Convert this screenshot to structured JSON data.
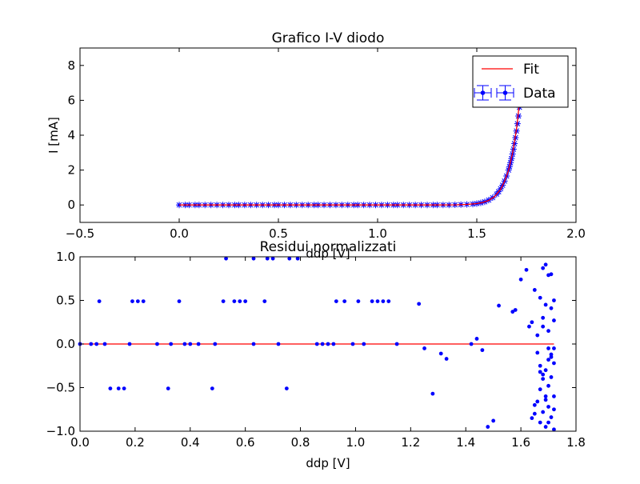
{
  "chart_data": [
    {
      "type": "scatter",
      "title": "Grafico I-V diodo",
      "xlabel": "ddp [V]",
      "ylabel": "I [mA]",
      "xlim": [
        -0.5,
        2.0
      ],
      "ylim": [
        -1,
        9
      ],
      "xticks": [
        "−0.5",
        "0.0",
        "0.5",
        "1.0",
        "1.5",
        "2.0"
      ],
      "yticks": [
        "0",
        "2",
        "4",
        "6",
        "8"
      ],
      "legend": {
        "position": "top-right",
        "entries": [
          "Fit",
          "Data"
        ]
      },
      "colors": {
        "fit": "#ff0000",
        "data": "#0000ff"
      },
      "series": [
        {
          "name": "Data",
          "kind": "errorbar-points",
          "x": [
            0.0,
            0.03,
            0.05,
            0.08,
            0.1,
            0.13,
            0.16,
            0.19,
            0.22,
            0.25,
            0.28,
            0.3,
            0.33,
            0.36,
            0.39,
            0.42,
            0.45,
            0.48,
            0.5,
            0.53,
            0.56,
            0.59,
            0.62,
            0.65,
            0.68,
            0.7,
            0.73,
            0.76,
            0.79,
            0.82,
            0.85,
            0.88,
            0.9,
            0.93,
            0.96,
            0.99,
            1.02,
            1.05,
            1.08,
            1.1,
            1.13,
            1.16,
            1.19,
            1.22,
            1.25,
            1.28,
            1.3,
            1.33,
            1.36,
            1.39,
            1.42,
            1.45,
            1.48,
            1.5,
            1.52,
            1.54,
            1.56,
            1.58,
            1.6,
            1.61,
            1.62,
            1.63,
            1.64,
            1.65,
            1.66,
            1.665,
            1.67,
            1.675,
            1.68,
            1.685,
            1.69,
            1.695,
            1.7,
            1.705,
            1.71,
            1.715,
            1.72
          ],
          "y": [
            0.0,
            0.0,
            0.0,
            0.0,
            0.0,
            0.0,
            0.0,
            0.0,
            0.0,
            0.0,
            0.0,
            0.0,
            0.0,
            0.0,
            0.0,
            0.0,
            0.0,
            0.0,
            0.0,
            0.0,
            0.0,
            0.0,
            0.0,
            0.0,
            0.0,
            0.0,
            0.0,
            0.0,
            0.0,
            0.0,
            0.0,
            0.0,
            0.0,
            0.0,
            0.0,
            0.0,
            0.0,
            0.0,
            0.0,
            0.0,
            0.0,
            0.0,
            0.0,
            0.0,
            0.0,
            0.0,
            0.0,
            0.0,
            0.0,
            0.01,
            0.02,
            0.03,
            0.05,
            0.08,
            0.12,
            0.18,
            0.28,
            0.42,
            0.62,
            0.76,
            0.93,
            1.13,
            1.37,
            1.66,
            2.0,
            2.2,
            2.42,
            2.66,
            2.92,
            3.2,
            3.52,
            3.86,
            4.24,
            4.66,
            5.1,
            5.6,
            6.1
          ]
        },
        {
          "name": "Fit",
          "kind": "line",
          "x": [
            0.0,
            0.5,
            1.0,
            1.2,
            1.3,
            1.4,
            1.45,
            1.5,
            1.53,
            1.56,
            1.59,
            1.62,
            1.64,
            1.66,
            1.68,
            1.7,
            1.72
          ],
          "y": [
            0.0,
            0.0,
            0.0,
            0.0,
            0.0,
            0.01,
            0.03,
            0.08,
            0.14,
            0.26,
            0.48,
            0.9,
            1.35,
            2.0,
            2.95,
            4.35,
            6.4
          ]
        }
      ]
    },
    {
      "type": "scatter",
      "title": "Residui normalizzati",
      "xlabel": "ddp [V]",
      "ylabel": "",
      "xlim": [
        0.0,
        1.8
      ],
      "ylim": [
        -1.0,
        1.0
      ],
      "xticks": [
        "0.0",
        "0.2",
        "0.4",
        "0.6",
        "0.8",
        "1.0",
        "1.2",
        "1.4",
        "1.6",
        "1.8"
      ],
      "yticks": [
        "1.0",
        "0.5",
        "0.0",
        "−0.5",
        "−1.0"
      ],
      "colors": {
        "zero_line": "#ff0000",
        "points": "#0000ff"
      },
      "zero_line": {
        "x": [
          0.0,
          1.72
        ],
        "y": [
          0.0,
          0.0
        ]
      },
      "series": [
        {
          "kind": "points",
          "x": [
            0.0,
            0.04,
            0.06,
            0.07,
            0.09,
            0.11,
            0.14,
            0.16,
            0.18,
            0.19,
            0.21,
            0.23,
            0.28,
            0.32,
            0.33,
            0.36,
            0.38,
            0.4,
            0.43,
            0.48,
            0.49,
            0.52,
            0.53,
            0.56,
            0.58,
            0.6,
            0.63,
            0.63,
            0.67,
            0.68,
            0.7,
            0.72,
            0.75,
            0.76,
            0.79,
            0.86,
            0.88,
            0.9,
            0.92,
            0.93,
            0.96,
            0.99,
            1.01,
            1.03,
            1.06,
            1.08,
            1.1,
            1.12,
            1.15,
            1.23,
            1.25,
            1.28,
            1.31,
            1.33,
            1.42,
            1.44,
            1.46,
            1.48,
            1.5,
            1.52,
            1.57,
            1.58,
            1.6,
            1.62,
            1.63,
            1.64,
            1.65,
            1.66,
            1.67,
            1.68,
            1.69,
            1.7,
            1.71,
            1.72,
            1.66,
            1.67,
            1.68,
            1.69,
            1.7,
            1.71,
            1.72,
            1.65,
            1.66,
            1.67,
            1.68,
            1.69,
            1.7,
            1.71,
            1.72,
            1.67,
            1.68,
            1.69,
            1.7,
            1.71,
            1.72,
            1.68,
            1.69,
            1.7,
            1.71,
            1.72,
            1.64,
            1.65,
            1.67,
            1.69,
            1.7,
            1.71,
            1.72,
            1.68,
            1.7,
            1.72
          ],
          "y": [
            0.0,
            0.0,
            0.0,
            0.49,
            0.0,
            -0.51,
            -0.51,
            -0.51,
            0.0,
            0.49,
            0.49,
            0.49,
            0.0,
            -0.51,
            0.0,
            0.49,
            0.0,
            0.0,
            0.0,
            -0.51,
            0.0,
            0.49,
            0.98,
            0.49,
            0.49,
            0.49,
            0.0,
            0.98,
            0.49,
            0.98,
            0.98,
            0.0,
            -0.51,
            0.98,
            0.98,
            0.0,
            0.0,
            0.0,
            0.0,
            0.49,
            0.49,
            0.0,
            0.49,
            0.0,
            0.49,
            0.49,
            0.49,
            0.49,
            0.0,
            0.46,
            -0.05,
            -0.57,
            -0.11,
            -0.17,
            0.0,
            0.06,
            -0.07,
            -0.95,
            -0.88,
            0.44,
            0.37,
            0.39,
            0.74,
            0.85,
            0.2,
            0.25,
            0.62,
            0.1,
            0.53,
            0.87,
            0.91,
            0.79,
            0.41,
            0.27,
            -0.1,
            -0.25,
            -0.35,
            -0.6,
            -0.72,
            -0.84,
            -0.98,
            -0.8,
            -0.66,
            -0.52,
            -0.4,
            -0.3,
            -0.18,
            -0.12,
            -0.05,
            -0.9,
            -0.78,
            -0.64,
            -0.48,
            -0.38,
            -0.22,
            0.3,
            0.45,
            0.15,
            -0.15,
            -0.6,
            -0.85,
            -0.7,
            -0.32,
            -0.95,
            -0.05,
            0.8,
            0.5,
            0.2,
            -0.9,
            -0.75
          ]
        }
      ]
    }
  ]
}
